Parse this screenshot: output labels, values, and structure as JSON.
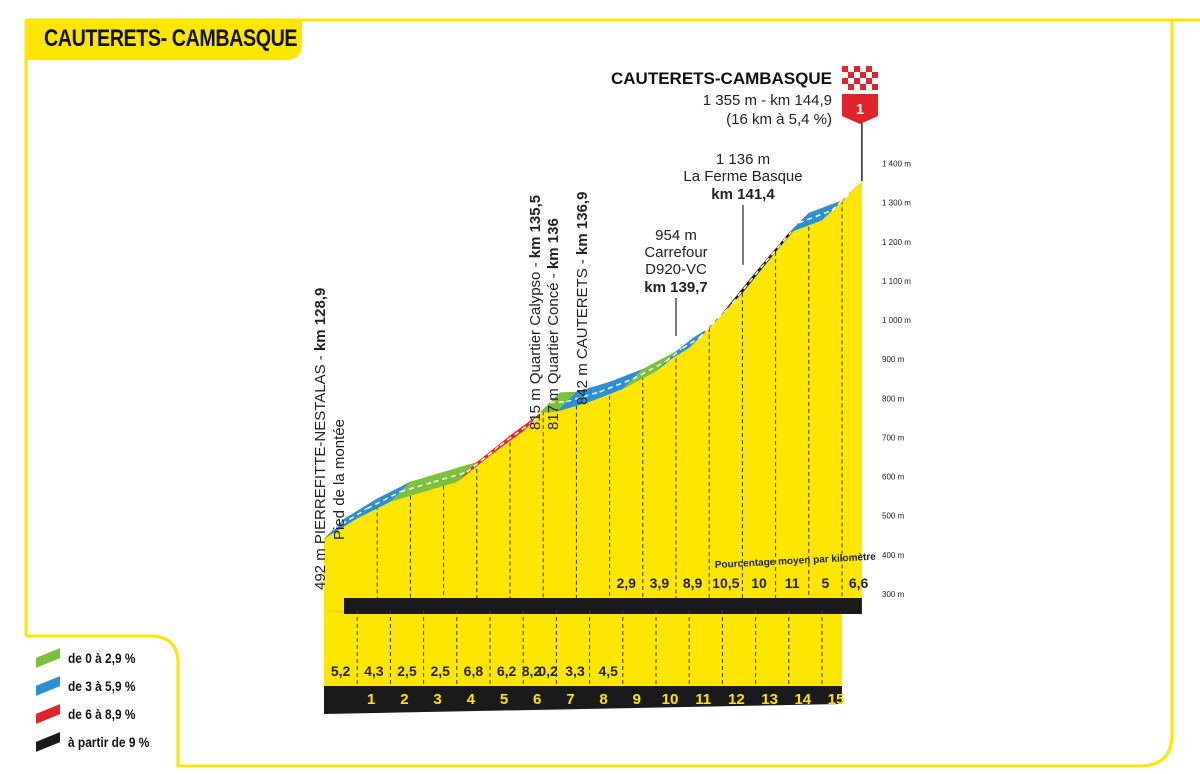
{
  "title": "CAUTERETS- CAMBASQUE",
  "colors": {
    "yellow": "#ffe600",
    "green": "#7bbf3a",
    "blue": "#2b8fd6",
    "red": "#e3232b",
    "black": "#1a1a1a"
  },
  "legend": [
    {
      "label": "de 0 à 2,9 %",
      "color": "#7bbf3a"
    },
    {
      "label": "de 3 à 5,9 %",
      "color": "#2b8fd6"
    },
    {
      "label": "de 6 à 8,9 %",
      "color": "#e3232b"
    },
    {
      "label": "à partir de 9 %",
      "color": "#1a1a1a"
    }
  ],
  "finish": {
    "name": "CAUTERETS-CAMBASQUE",
    "line1": "1 355 m - km 144,9",
    "line2": "(16 km à 5,4 %)",
    "category": "1"
  },
  "annotations": {
    "ferme": {
      "alt": "1 136 m",
      "name": "La Ferme Basque",
      "km": "km 141,4"
    },
    "carrefour": {
      "alt": "954 m",
      "name1": "Carrefour",
      "name2": "D920-VC",
      "km": "km 139,7"
    },
    "cauterets": {
      "text": "842 m CAUTERETS - ",
      "km": "km 136,9"
    },
    "conce": {
      "text": "817 m Quartier Concé - ",
      "km": "km 136"
    },
    "calypso": {
      "text": "815 m Quartier Calypso - ",
      "km": "km 135,5"
    },
    "pierrefitte": {
      "text": "492 m PIERREFITTE-NESTALAS - ",
      "km": "km 128,9",
      "sub": "Pied de la montée"
    }
  },
  "pct_caption": "Pourcentage moyen par kilomètre",
  "chart_data": {
    "type": "area",
    "title": "CAUTERETS- CAMBASQUE",
    "xlabel": "",
    "ylabel": "",
    "ylim": [
      300,
      1400
    ],
    "y_ticks": [
      "300 m",
      "400 m",
      "500 m",
      "600 m",
      "700 m",
      "800 m",
      "900 m",
      "1 000 m",
      "1 100 m",
      "1 200 m",
      "1 300 m",
      "1 400 m"
    ],
    "x_ticks": [
      "1",
      "2",
      "3",
      "4",
      "5",
      "6",
      "7",
      "8",
      "9",
      "10",
      "11",
      "12",
      "13",
      "14",
      "15"
    ],
    "km_percent_lower": [
      "5,2",
      "4,3",
      "2,5",
      "2,5",
      "6,8",
      "6,2",
      "8,2",
      "0,2",
      "3,3",
      "4,5"
    ],
    "km_percent_upper": [
      "2,9",
      "3,9",
      "8,9",
      "10,5",
      "10",
      "11",
      "5",
      "6,6"
    ],
    "x": [
      0,
      1,
      2,
      3,
      4,
      5,
      6,
      6.5,
      7,
      8,
      9,
      10,
      10.5,
      11,
      12,
      13,
      14,
      15,
      15.6
    ],
    "elevation": [
      492,
      544,
      587,
      612,
      637,
      705,
      767,
      815,
      817,
      842,
      875,
      920,
      954,
      980,
      1069,
      1174,
      1274,
      1306,
      1355
    ],
    "segment_colors": [
      "blue",
      "blue",
      "green",
      "green",
      "red",
      "red",
      "red",
      "green",
      "blue",
      "blue",
      "green",
      "blue",
      "blue",
      "red",
      "black",
      "black",
      "blue",
      "red"
    ]
  }
}
